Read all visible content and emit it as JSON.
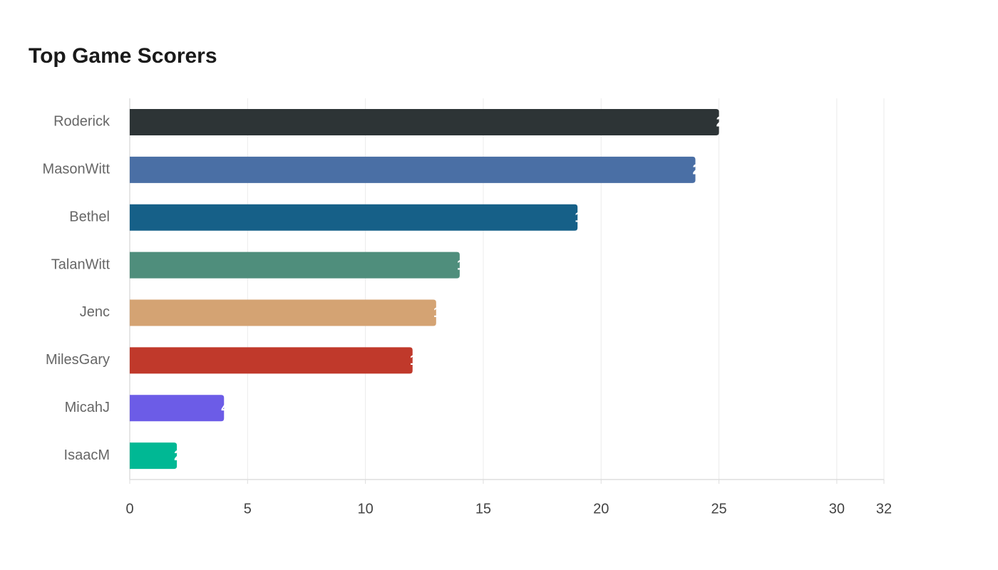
{
  "chart_data": {
    "type": "hbar",
    "title": "Top Game Scorers",
    "categories": [
      "Roderick",
      "MasonWitt",
      "Bethel",
      "TalanWitt",
      "Jenc",
      "MilesGary",
      "MicahJ",
      "IsaacM"
    ],
    "values": [
      25,
      24,
      19,
      14,
      13,
      12,
      4,
      2
    ],
    "colors": [
      "#2d3436",
      "#4a6fa5",
      "#166088",
      "#4f8e7c",
      "#d4a373",
      "#c0392b",
      "#6c5ce7",
      "#00b894"
    ],
    "xlim": [
      0,
      32
    ],
    "xticks": [
      0,
      5,
      10,
      15,
      20,
      25,
      30,
      32
    ],
    "grid": true
  }
}
